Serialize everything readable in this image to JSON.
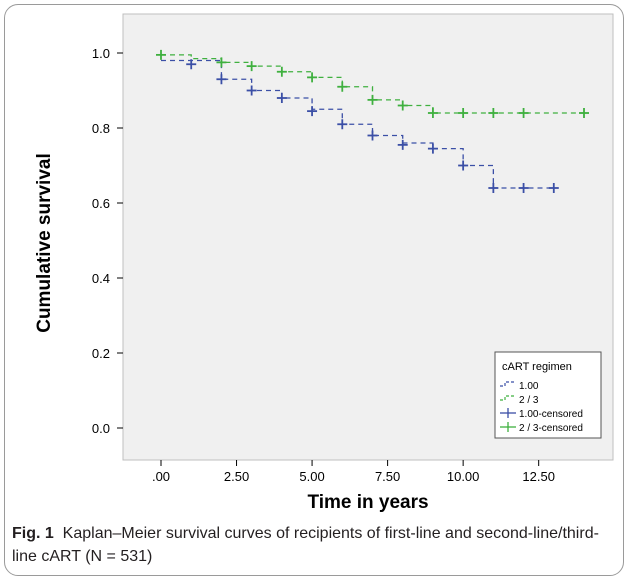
{
  "chart_data": {
    "type": "line",
    "subtype": "kaplan-meier step curve",
    "xlabel": "Time in years",
    "ylabel": "Cumulative survival",
    "xlim": [
      0,
      14
    ],
    "ylim": [
      0,
      1.0
    ],
    "x_ticks": [
      0,
      2.5,
      5,
      7.5,
      10,
      12.5
    ],
    "x_tick_labels": [
      ".00",
      "2.50",
      "5.00",
      "7.50",
      "10.00",
      "12.50"
    ],
    "y_ticks": [
      0.0,
      0.2,
      0.4,
      0.6,
      0.8,
      1.0
    ],
    "y_tick_labels": [
      "0.0",
      "0.2",
      "0.4",
      "0.6",
      "0.8",
      "1.0"
    ],
    "grid": false,
    "legend": {
      "title": "cART regimen",
      "placement": "bottom-right",
      "entries": [
        "1.00",
        "2 / 3",
        "1.00-censored",
        "2 / 3-censored"
      ]
    },
    "series": [
      {
        "name": "1.00",
        "color": "#3b4fa6",
        "steps": [
          [
            0,
            0.98
          ],
          [
            2,
            0.93
          ],
          [
            3,
            0.9
          ],
          [
            4,
            0.88
          ],
          [
            5,
            0.85
          ],
          [
            6,
            0.81
          ],
          [
            7,
            0.78
          ],
          [
            8,
            0.76
          ],
          [
            9,
            0.745
          ],
          [
            10,
            0.7
          ],
          [
            11,
            0.64
          ],
          [
            13,
            0.64
          ]
        ],
        "censored": [
          [
            1,
            0.97
          ],
          [
            2,
            0.93
          ],
          [
            3,
            0.9
          ],
          [
            4,
            0.88
          ],
          [
            5,
            0.845
          ],
          [
            6,
            0.81
          ],
          [
            7,
            0.78
          ],
          [
            8,
            0.755
          ],
          [
            9,
            0.745
          ],
          [
            10,
            0.7
          ],
          [
            11,
            0.64
          ],
          [
            12,
            0.64
          ],
          [
            13,
            0.64
          ]
        ]
      },
      {
        "name": "2 / 3",
        "color": "#3fb03f",
        "steps": [
          [
            0,
            0.995
          ],
          [
            1,
            0.985
          ],
          [
            2,
            0.975
          ],
          [
            3,
            0.965
          ],
          [
            4,
            0.95
          ],
          [
            5,
            0.935
          ],
          [
            6,
            0.91
          ],
          [
            7,
            0.875
          ],
          [
            8,
            0.86
          ],
          [
            9,
            0.84
          ],
          [
            14,
            0.84
          ]
        ],
        "censored": [
          [
            0,
            0.995
          ],
          [
            2,
            0.975
          ],
          [
            3,
            0.965
          ],
          [
            4,
            0.95
          ],
          [
            5,
            0.935
          ],
          [
            6,
            0.91
          ],
          [
            7,
            0.875
          ],
          [
            8,
            0.86
          ],
          [
            9,
            0.84
          ],
          [
            10,
            0.84
          ],
          [
            11,
            0.84
          ],
          [
            12,
            0.84
          ],
          [
            14,
            0.84
          ]
        ]
      }
    ]
  },
  "caption": {
    "label": "Fig. 1",
    "text": "Kaplan–Meier survival curves of recipients of first-line and second-line/third-line cART (N = 531)"
  }
}
